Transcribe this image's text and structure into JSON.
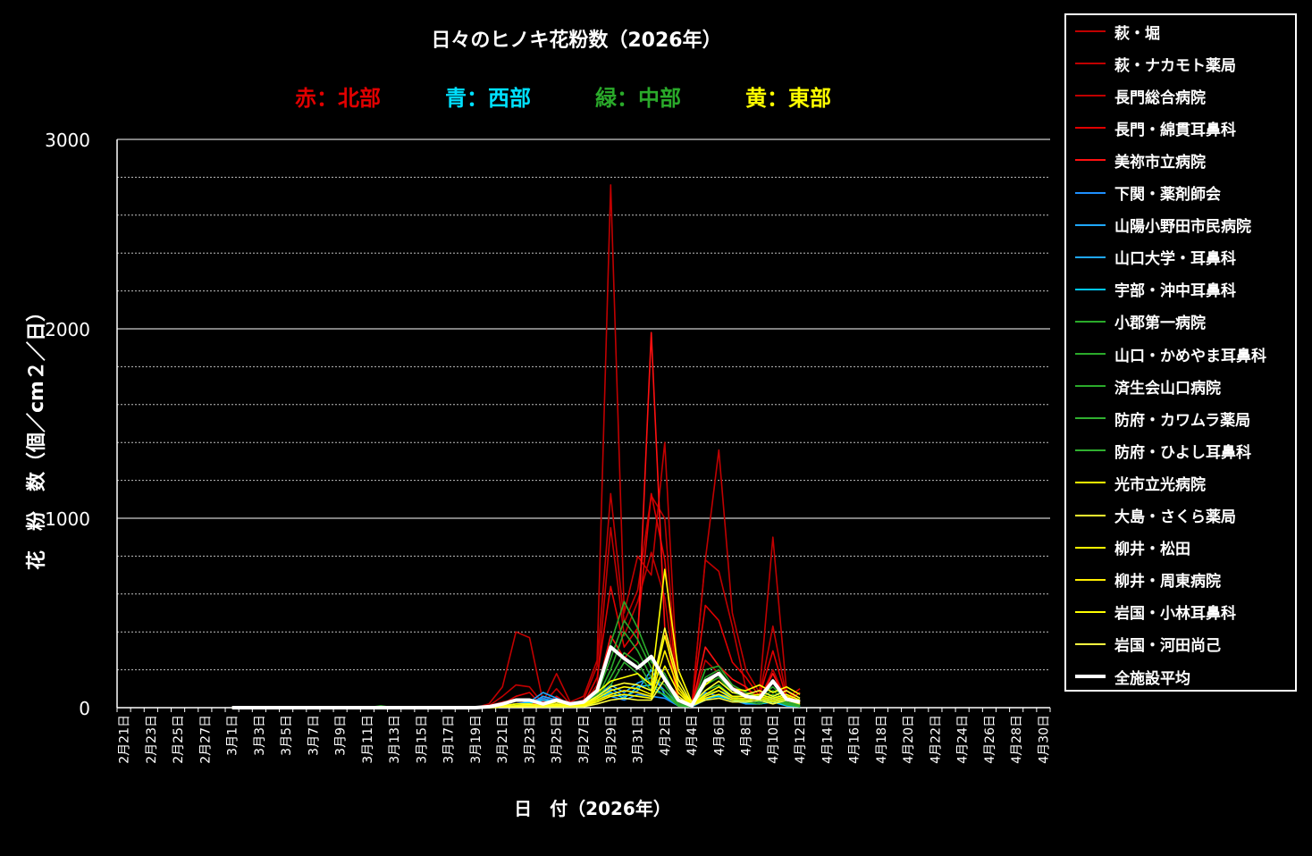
{
  "chart_data": {
    "type": "line",
    "title": "日々のヒノキ花粉数（2026年）",
    "region_labels": [
      {
        "text": "赤：北部",
        "color": "#e00000"
      },
      {
        "text": "青：西部",
        "color": "#00e0ff"
      },
      {
        "text": "緑：中部",
        "color": "#2aaa2a"
      },
      {
        "text": "黄：東部",
        "color": "#ffff00"
      }
    ],
    "xlabel": "日　付（2026年）",
    "ylabel": "花　粉　数（個／cm２／日）",
    "ylim": [
      0,
      3000
    ],
    "yticks": [
      0,
      1000,
      2000,
      3000
    ],
    "minor_grid_step": 200,
    "grid": true,
    "legend_position": "right",
    "x_start": "2月21日",
    "x_end": "4月30日",
    "x_tick_labels": [
      "2月21日",
      "2月23日",
      "2月25日",
      "2月27日",
      "3月1日",
      "3月3日",
      "3月5日",
      "3月7日",
      "3月9日",
      "3月11日",
      "3月13日",
      "3月15日",
      "3月17日",
      "3月19日",
      "3月21日",
      "3月23日",
      "3月25日",
      "3月27日",
      "3月29日",
      "3月31日",
      "4月2日",
      "4月4日",
      "4月6日",
      "4月8日",
      "4月10日",
      "4月12日",
      "4月14日",
      "4月16日",
      "4月18日",
      "4月20日",
      "4月22日",
      "4月24日",
      "4月26日",
      "4月28日",
      "4月30日"
    ],
    "series_start": "3月1日",
    "series": [
      {
        "name": "萩・堀",
        "color": "#c00000",
        "values": [
          0,
          0,
          0,
          0,
          0,
          0,
          0,
          0,
          0,
          0,
          0,
          0,
          0,
          0,
          0,
          0,
          0,
          0,
          0,
          20,
          110,
          400,
          370,
          30,
          180,
          30,
          60,
          250,
          2760,
          500,
          800,
          700,
          1400,
          60,
          10,
          780,
          1360,
          500,
          200,
          80,
          900,
          90,
          30
        ]
      },
      {
        "name": "萩・ナカモト薬局",
        "color": "#c00000",
        "values": [
          0,
          0,
          0,
          0,
          0,
          0,
          0,
          0,
          0,
          0,
          0,
          0,
          0,
          0,
          0,
          0,
          0,
          0,
          0,
          10,
          60,
          120,
          110,
          20,
          100,
          20,
          40,
          220,
          1130,
          450,
          620,
          1120,
          1000,
          40,
          10,
          780,
          720,
          430,
          100,
          60,
          430,
          60,
          20
        ]
      },
      {
        "name": "長門総合病院",
        "color": "#c00000",
        "values": [
          0,
          0,
          0,
          0,
          0,
          0,
          0,
          0,
          0,
          0,
          0,
          0,
          0,
          0,
          0,
          0,
          0,
          0,
          0,
          10,
          30,
          40,
          40,
          10,
          30,
          10,
          20,
          120,
          950,
          380,
          560,
          820,
          580,
          40,
          5,
          250,
          180,
          120,
          70,
          40,
          200,
          40,
          15
        ]
      },
      {
        "name": "長門・綿貫耳鼻科",
        "color": "#e00000",
        "values": [
          0,
          0,
          0,
          0,
          0,
          0,
          0,
          0,
          0,
          0,
          0,
          0,
          0,
          0,
          0,
          0,
          0,
          0,
          0,
          5,
          20,
          60,
          80,
          5,
          60,
          10,
          20,
          160,
          640,
          320,
          420,
          1130,
          780,
          30,
          10,
          540,
          460,
          240,
          160,
          60,
          300,
          50,
          100
        ]
      },
      {
        "name": "美祢市立病院",
        "color": "#ff1010",
        "values": [
          0,
          0,
          0,
          0,
          0,
          0,
          0,
          0,
          0,
          0,
          0,
          0,
          0,
          0,
          0,
          0,
          0,
          0,
          0,
          5,
          10,
          20,
          30,
          5,
          20,
          5,
          10,
          90,
          380,
          260,
          340,
          1980,
          420,
          30,
          5,
          320,
          220,
          150,
          110,
          40,
          180,
          30,
          80
        ]
      },
      {
        "name": "下関・薬剤師会",
        "color": "#1e90ff",
        "values": [
          0,
          0,
          0,
          0,
          0,
          0,
          0,
          0,
          0,
          0,
          0,
          0,
          0,
          0,
          0,
          0,
          0,
          0,
          0,
          0,
          10,
          20,
          20,
          50,
          30,
          10,
          20,
          80,
          60,
          40,
          70,
          60,
          50,
          10,
          5,
          80,
          60,
          40,
          20,
          20,
          30,
          10,
          10
        ]
      },
      {
        "name": "山陽小野田市民病院",
        "color": "#20a8ff",
        "values": [
          0,
          0,
          0,
          0,
          0,
          0,
          0,
          0,
          0,
          0,
          0,
          0,
          0,
          0,
          0,
          0,
          0,
          0,
          0,
          0,
          10,
          20,
          30,
          80,
          50,
          20,
          30,
          60,
          120,
          80,
          130,
          160,
          90,
          20,
          5,
          60,
          90,
          60,
          40,
          30,
          50,
          20,
          10
        ]
      },
      {
        "name": "山口大学・耳鼻科",
        "color": "#20a8ff",
        "values": [
          0,
          0,
          0,
          0,
          0,
          0,
          0,
          0,
          0,
          0,
          0,
          0,
          0,
          0,
          0,
          0,
          0,
          0,
          0,
          0,
          5,
          10,
          20,
          60,
          40,
          10,
          20,
          50,
          100,
          60,
          90,
          200,
          70,
          10,
          5,
          40,
          70,
          50,
          30,
          20,
          40,
          15,
          5
        ]
      },
      {
        "name": "宇部・沖中耳鼻科",
        "color": "#00c8ff",
        "values": [
          0,
          0,
          0,
          0,
          0,
          0,
          0,
          0,
          0,
          0,
          0,
          0,
          0,
          0,
          0,
          0,
          0,
          0,
          0,
          0,
          5,
          15,
          25,
          40,
          30,
          15,
          25,
          40,
          80,
          50,
          110,
          120,
          60,
          15,
          5,
          50,
          60,
          40,
          25,
          20,
          30,
          10,
          5
        ]
      },
      {
        "name": "小郡第一病院",
        "color": "#2aaa2a",
        "values": [
          0,
          0,
          0,
          0,
          0,
          0,
          0,
          0,
          0,
          0,
          0,
          10,
          0,
          0,
          0,
          0,
          0,
          0,
          0,
          0,
          10,
          20,
          20,
          10,
          20,
          10,
          20,
          90,
          340,
          560,
          420,
          240,
          180,
          30,
          10,
          200,
          220,
          120,
          80,
          60,
          110,
          40,
          20
        ]
      },
      {
        "name": "山口・かめやま耳鼻科",
        "color": "#2aaa2a",
        "values": [
          0,
          0,
          0,
          0,
          0,
          0,
          0,
          0,
          0,
          0,
          0,
          5,
          0,
          0,
          0,
          0,
          0,
          0,
          0,
          0,
          10,
          15,
          20,
          10,
          15,
          10,
          15,
          70,
          260,
          460,
          360,
          210,
          150,
          20,
          5,
          160,
          200,
          100,
          70,
          50,
          90,
          30,
          15
        ]
      },
      {
        "name": "済生会山口病院",
        "color": "#2aaa2a",
        "values": [
          0,
          0,
          0,
          0,
          0,
          0,
          0,
          0,
          0,
          0,
          0,
          5,
          0,
          0,
          0,
          0,
          0,
          0,
          0,
          0,
          5,
          10,
          15,
          5,
          10,
          5,
          10,
          50,
          200,
          400,
          300,
          160,
          120,
          15,
          5,
          120,
          160,
          80,
          60,
          40,
          70,
          25,
          10
        ]
      },
      {
        "name": "防府・カワムラ薬局",
        "color": "#30b030",
        "values": [
          0,
          0,
          0,
          0,
          0,
          0,
          0,
          0,
          0,
          0,
          0,
          0,
          0,
          0,
          0,
          0,
          0,
          0,
          0,
          0,
          5,
          10,
          10,
          5,
          10,
          5,
          10,
          40,
          160,
          290,
          240,
          120,
          90,
          10,
          5,
          90,
          120,
          60,
          40,
          30,
          60,
          20,
          10
        ]
      },
      {
        "name": "防府・ひよし耳鼻科",
        "color": "#30b030",
        "values": [
          0,
          0,
          0,
          0,
          0,
          0,
          0,
          0,
          0,
          0,
          0,
          0,
          0,
          0,
          0,
          0,
          0,
          0,
          0,
          0,
          5,
          5,
          10,
          5,
          5,
          5,
          5,
          30,
          120,
          240,
          180,
          90,
          70,
          10,
          5,
          70,
          90,
          50,
          30,
          20,
          40,
          15,
          5
        ]
      },
      {
        "name": "光市立光病院",
        "color": "#ffff00",
        "values": [
          0,
          0,
          0,
          0,
          0,
          0,
          0,
          0,
          0,
          0,
          0,
          0,
          0,
          0,
          0,
          0,
          0,
          0,
          0,
          0,
          10,
          20,
          20,
          10,
          30,
          10,
          30,
          80,
          140,
          160,
          180,
          120,
          730,
          200,
          30,
          120,
          180,
          100,
          90,
          120,
          80,
          110,
          70
        ]
      },
      {
        "name": "大島・さくら薬局",
        "color": "#ffff30",
        "values": [
          0,
          0,
          0,
          0,
          0,
          0,
          0,
          0,
          0,
          0,
          0,
          0,
          0,
          0,
          0,
          0,
          0,
          0,
          0,
          0,
          5,
          10,
          15,
          5,
          20,
          5,
          20,
          60,
          110,
          130,
          120,
          90,
          420,
          150,
          20,
          90,
          140,
          80,
          70,
          90,
          60,
          90,
          50
        ]
      },
      {
        "name": "柳井・松田",
        "color": "#ffff00",
        "values": [
          0,
          0,
          0,
          0,
          0,
          0,
          0,
          0,
          0,
          0,
          0,
          0,
          0,
          0,
          0,
          0,
          0,
          0,
          0,
          0,
          5,
          10,
          10,
          5,
          15,
          5,
          15,
          50,
          90,
          110,
          100,
          70,
          380,
          120,
          15,
          70,
          110,
          60,
          60,
          70,
          50,
          70,
          40
        ]
      },
      {
        "name": "柳井・周東病院",
        "color": "#ffee00",
        "values": [
          0,
          0,
          0,
          0,
          0,
          0,
          0,
          0,
          0,
          0,
          0,
          0,
          0,
          0,
          0,
          0,
          0,
          0,
          0,
          0,
          5,
          5,
          10,
          5,
          10,
          5,
          10,
          40,
          70,
          90,
          80,
          60,
          300,
          100,
          10,
          60,
          90,
          50,
          50,
          60,
          40,
          60,
          30
        ]
      },
      {
        "name": "岩国・小林耳鼻科",
        "color": "#ffff00",
        "values": [
          0,
          0,
          0,
          0,
          0,
          0,
          0,
          0,
          0,
          0,
          0,
          0,
          0,
          0,
          0,
          0,
          0,
          0,
          0,
          0,
          5,
          5,
          5,
          5,
          10,
          5,
          10,
          30,
          60,
          70,
          60,
          50,
          220,
          80,
          10,
          50,
          70,
          40,
          40,
          50,
          30,
          50,
          25
        ]
      },
      {
        "name": "岩国・河田尚己",
        "color": "#ffff40",
        "values": [
          0,
          0,
          0,
          0,
          0,
          0,
          0,
          0,
          0,
          0,
          0,
          0,
          0,
          0,
          0,
          0,
          0,
          0,
          0,
          0,
          5,
          5,
          5,
          5,
          5,
          5,
          5,
          20,
          40,
          50,
          40,
          40,
          150,
          60,
          10,
          40,
          50,
          30,
          30,
          40,
          20,
          40,
          20
        ]
      },
      {
        "name": "全施設平均",
        "color": "#ffffff",
        "values": [
          0,
          0,
          0,
          0,
          0,
          0,
          0,
          0,
          0,
          0,
          0,
          0,
          0,
          0,
          0,
          0,
          0,
          0,
          0,
          5,
          20,
          40,
          40,
          20,
          40,
          20,
          30,
          90,
          320,
          260,
          210,
          270,
          150,
          40,
          10,
          140,
          180,
          100,
          60,
          50,
          140,
          45,
          30
        ]
      }
    ]
  }
}
